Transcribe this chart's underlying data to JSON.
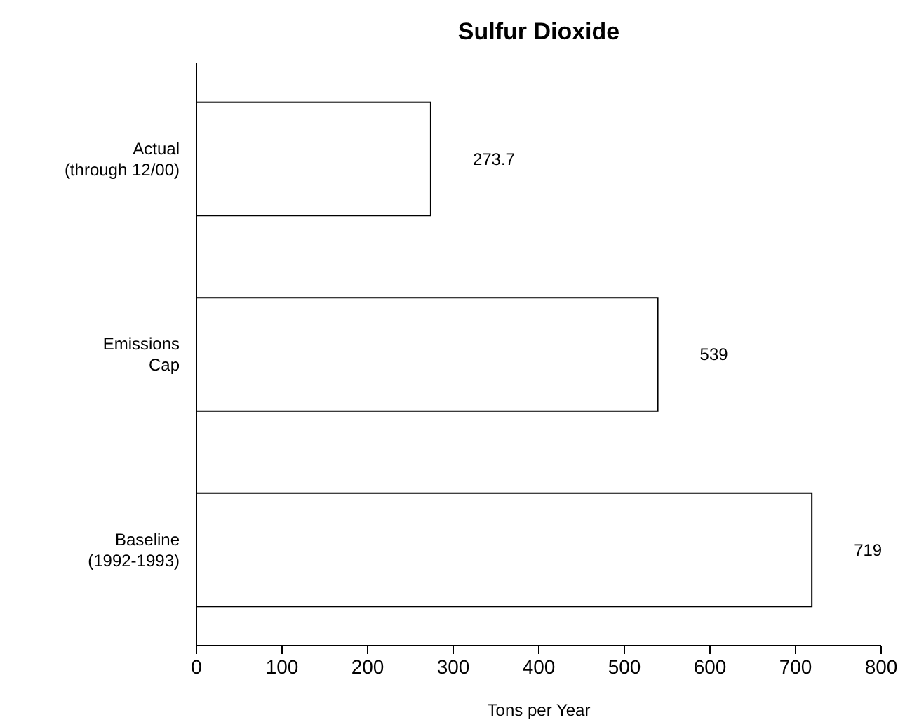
{
  "chart_data": {
    "type": "bar",
    "orientation": "horizontal",
    "title": "Sulfur Dioxide",
    "xlabel": "Tons per Year",
    "categories": [
      "Actual\n(through 12/00)",
      "Emissions\nCap",
      "Baseline\n(1992-1993)"
    ],
    "values": [
      273.7,
      539,
      719
    ],
    "color": "#ffffff",
    "xlim": [
      0,
      800
    ],
    "xticks": [
      0,
      100,
      200,
      300,
      400,
      500,
      600,
      700,
      800
    ],
    "grid": false,
    "data_labels": true
  }
}
